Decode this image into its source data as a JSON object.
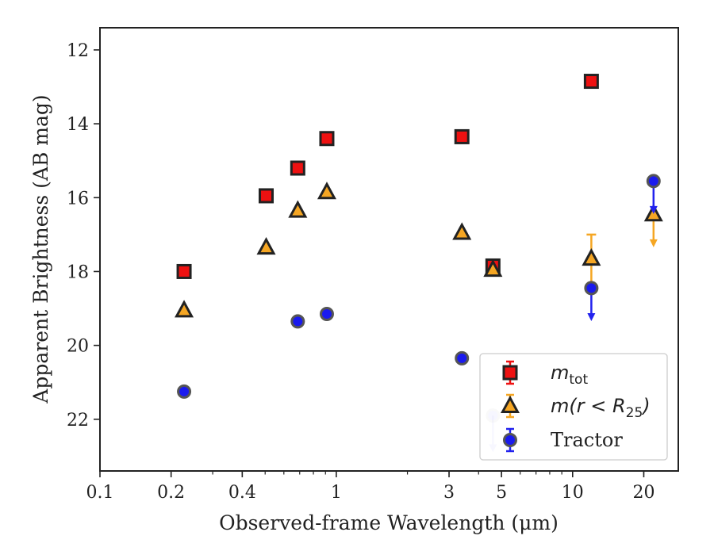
{
  "chart_data": {
    "type": "scatter",
    "xlabel": "Observed-frame Wavelength (μm)",
    "ylabel": "Apparent Brightness (AB mag)",
    "x_scale": "log",
    "xlim": [
      0.1,
      28
    ],
    "ylim": [
      23.4,
      11.4
    ],
    "y_inverted": true,
    "x_ticks": [
      {
        "value": 0.1,
        "label": "0.1"
      },
      {
        "value": 0.2,
        "label": "0.2"
      },
      {
        "value": 0.4,
        "label": "0.4"
      },
      {
        "value": 1,
        "label": "1"
      },
      {
        "value": 3,
        "label": "3"
      },
      {
        "value": 5,
        "label": "5"
      },
      {
        "value": 10,
        "label": "10"
      },
      {
        "value": 20,
        "label": "20"
      }
    ],
    "y_ticks": [
      {
        "value": 12,
        "label": "12"
      },
      {
        "value": 14,
        "label": "14"
      },
      {
        "value": 16,
        "label": "16"
      },
      {
        "value": 18,
        "label": "18"
      },
      {
        "value": 20,
        "label": "20"
      },
      {
        "value": 22,
        "label": "22"
      }
    ],
    "grid": false,
    "legend": {
      "position": "lower-right",
      "entries": [
        {
          "series": 0,
          "label_base": "m",
          "label_sub": "tot",
          "label_rest": ""
        },
        {
          "series": 1,
          "label_base": "m(r < R",
          "label_sub": "25",
          "label_rest": ")"
        },
        {
          "series": 2,
          "label_base": "Tractor",
          "label_sub": "",
          "label_rest": ""
        }
      ]
    },
    "series": [
      {
        "marker": "square",
        "color": "#ee1111",
        "edge_color": "#222222",
        "points": [
          {
            "x": 0.227,
            "y": 18.0
          },
          {
            "x": 0.505,
            "y": 15.95
          },
          {
            "x": 0.687,
            "y": 15.2
          },
          {
            "x": 0.912,
            "y": 14.4
          },
          {
            "x": 3.4,
            "y": 14.35
          },
          {
            "x": 4.6,
            "y": 17.85
          },
          {
            "x": 12.0,
            "y": 12.85
          }
        ]
      },
      {
        "marker": "triangle",
        "color": "#f5a623",
        "edge_color": "#222222",
        "points": [
          {
            "x": 0.227,
            "y": 19.05
          },
          {
            "x": 0.505,
            "y": 17.35
          },
          {
            "x": 0.687,
            "y": 16.35
          },
          {
            "x": 0.912,
            "y": 15.85
          },
          {
            "x": 3.4,
            "y": 16.95
          },
          {
            "x": 4.6,
            "y": 17.95
          },
          {
            "x": 12.0,
            "y": 17.65,
            "err_low": 17.0,
            "upper_limit": true
          },
          {
            "x": 22.0,
            "y": 16.45,
            "upper_limit": true,
            "limit_to": 17.3
          }
        ]
      },
      {
        "marker": "circle",
        "color": "#1a1aee",
        "edge_color": "#555555",
        "points": [
          {
            "x": 0.227,
            "y": 21.25
          },
          {
            "x": 0.687,
            "y": 19.35
          },
          {
            "x": 0.912,
            "y": 19.15
          },
          {
            "x": 3.4,
            "y": 20.35
          },
          {
            "x": 4.6,
            "y": 21.9,
            "upper_limit": true,
            "limit_to": 22.85,
            "faded": true
          },
          {
            "x": 12.0,
            "y": 18.45,
            "upper_limit": true,
            "limit_to": 19.3
          },
          {
            "x": 22.0,
            "y": 15.55,
            "upper_limit": true,
            "limit_to": 16.4
          }
        ]
      }
    ]
  }
}
